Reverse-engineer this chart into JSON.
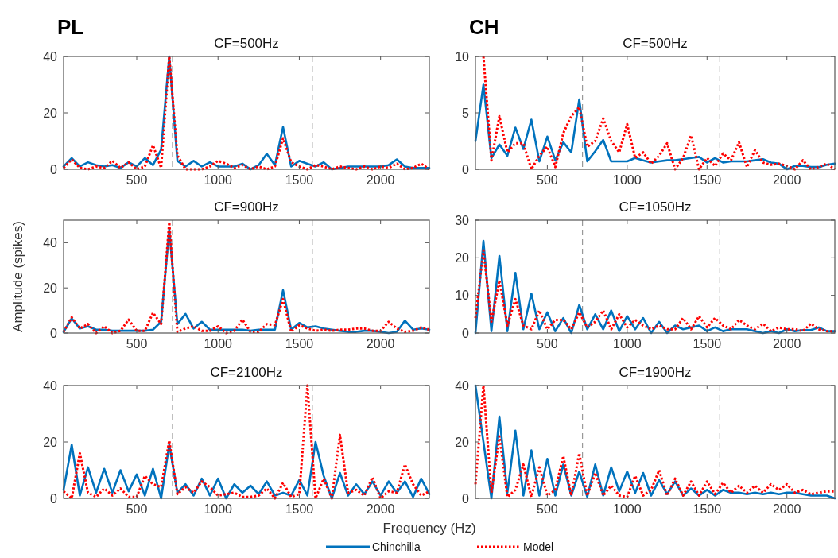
{
  "chart_data": [
    {
      "type": "line",
      "title": "CF=500Hz",
      "annotations": [
        "PL"
      ],
      "x": [
        50,
        100,
        150,
        200,
        250,
        300,
        350,
        400,
        450,
        500,
        550,
        600,
        650,
        700,
        750,
        800,
        850,
        900,
        950,
        1000,
        1050,
        1100,
        1150,
        1200,
        1250,
        1300,
        1350,
        1400,
        1450,
        1500,
        1550,
        1600,
        1650,
        1700,
        1750,
        1800,
        1850,
        1900,
        1950,
        2000,
        2050,
        2100,
        2150,
        2200,
        2250,
        2300
      ],
      "xlim": [
        50,
        2300
      ],
      "xticks": [
        500,
        1000,
        1500,
        2000
      ],
      "ylim": [
        0,
        40
      ],
      "yticks": [
        0,
        20,
        40
      ],
      "legend": false,
      "ref_lines": [
        {
          "axis": "x",
          "value": 720,
          "color": "#999999",
          "line_style": "dashed"
        },
        {
          "axis": "x",
          "value": 1580,
          "color": "#999999",
          "line_style": "dashed"
        }
      ],
      "series": [
        {
          "color": "#0072bd",
          "line_style": "solid",
          "values": [
            1,
            4,
            1,
            2.5,
            1.5,
            1,
            1.5,
            0.5,
            2.5,
            1,
            4,
            1.5,
            7,
            40,
            3,
            1,
            3,
            1,
            2.5,
            1,
            1,
            1,
            2,
            0,
            1.5,
            5.5,
            1.5,
            15,
            1,
            3,
            2,
            1,
            2.5,
            0,
            0.5,
            1,
            1,
            1,
            1,
            1,
            1.5,
            3.5,
            1,
            0.5,
            0.5,
            0.5
          ]
        },
        {
          "color": "#ff0000",
          "line_style": "dotted",
          "values": [
            0.5,
            3.5,
            0.5,
            0,
            1,
            0.5,
            3,
            0.5,
            2.5,
            0,
            1,
            8.5,
            0.5,
            40,
            5,
            0,
            0,
            0,
            1,
            3,
            2,
            0.5,
            1.5,
            0,
            1,
            0,
            1,
            11,
            2.5,
            1,
            0,
            1.5,
            1,
            0,
            1,
            0.5,
            0,
            1,
            0,
            1,
            0.5,
            2,
            0,
            0.5,
            2,
            0
          ]
        }
      ]
    },
    {
      "type": "line",
      "title": "CF=500Hz",
      "annotations": [
        "CH"
      ],
      "x": [
        50,
        100,
        150,
        200,
        250,
        300,
        350,
        400,
        450,
        500,
        550,
        600,
        650,
        700,
        750,
        800,
        850,
        900,
        950,
        1000,
        1050,
        1100,
        1150,
        1200,
        1250,
        1300,
        1350,
        1400,
        1450,
        1500,
        1550,
        1600,
        1650,
        1700,
        1750,
        1800,
        1850,
        1900,
        1950,
        2000,
        2050,
        2100,
        2150,
        2200,
        2250,
        2300
      ],
      "xlim": [
        50,
        2300
      ],
      "xticks": [
        500,
        1000,
        1500,
        2000
      ],
      "ylim": [
        0,
        10
      ],
      "yticks": [
        0,
        5,
        10
      ],
      "legend": false,
      "ref_lines": [
        {
          "axis": "x",
          "value": 720,
          "color": "#999999",
          "line_style": "dashed"
        },
        {
          "axis": "x",
          "value": 1580,
          "color": "#999999",
          "line_style": "dashed"
        }
      ],
      "series": [
        {
          "color": "#0072bd",
          "line_style": "solid",
          "values": [
            2.5,
            7.5,
            1,
            2.2,
            1.2,
            3.7,
            1.8,
            4.4,
            0.7,
            2.9,
            0.8,
            2.4,
            1.5,
            6.2,
            0.7,
            1.6,
            2.6,
            0.7,
            0.7,
            0.7,
            1,
            0.8,
            0.6,
            0.7,
            0.8,
            0.8,
            0.9,
            1,
            1.1,
            0.6,
            1,
            0.6,
            0.7,
            0.7,
            0.7,
            0.8,
            0.9,
            0.6,
            0.5,
            0,
            0.3,
            0.3,
            0.2,
            0.2,
            0.4,
            0.5
          ]
        },
        {
          "color": "#ff0000",
          "line_style": "dotted",
          "values": [
            null,
            10,
            0.8,
            4.7,
            1.5,
            2.3,
            2.3,
            0,
            1.2,
            2,
            0.2,
            3.2,
            4.7,
            5.5,
            2,
            2.5,
            4.5,
            2.5,
            1.5,
            4,
            1,
            1.5,
            0.5,
            1.2,
            2.3,
            0,
            1,
            3,
            0,
            1,
            0.3,
            1.4,
            0.8,
            2.4,
            0.2,
            1.7,
            0.6,
            0.4,
            0.5,
            0.3,
            0,
            0.8,
            0,
            0.2,
            0.5,
            0
          ]
        }
      ]
    },
    {
      "type": "line",
      "title": "CF=900Hz",
      "ylabel": "Amplitude (spikes)",
      "x": [
        50,
        100,
        150,
        200,
        250,
        300,
        350,
        400,
        450,
        500,
        550,
        600,
        650,
        700,
        750,
        800,
        850,
        900,
        950,
        1000,
        1050,
        1100,
        1150,
        1200,
        1250,
        1300,
        1350,
        1400,
        1450,
        1500,
        1550,
        1600,
        1650,
        1700,
        1750,
        1800,
        1850,
        1900,
        1950,
        2000,
        2050,
        2100,
        2150,
        2200,
        2250,
        2300
      ],
      "xlim": [
        50,
        2300
      ],
      "xticks": [
        500,
        1000,
        1500,
        2000
      ],
      "ylim": [
        0,
        50
      ],
      "yticks": [
        0,
        20,
        40
      ],
      "legend": false,
      "ref_lines": [
        {
          "axis": "x",
          "value": 720,
          "color": "#999999",
          "line_style": "dashed"
        },
        {
          "axis": "x",
          "value": 1580,
          "color": "#999999",
          "line_style": "dashed"
        }
      ],
      "series": [
        {
          "color": "#0072bd",
          "line_style": "solid",
          "values": [
            0.5,
            6.5,
            2,
            3,
            1.5,
            1.5,
            1,
            1,
            1,
            1,
            1,
            1.5,
            5,
            46,
            4,
            8.5,
            2,
            5,
            1.5,
            1.5,
            1.5,
            1.5,
            1.5,
            1,
            1.5,
            1.5,
            1.5,
            19,
            1.5,
            4.5,
            2.5,
            3,
            2,
            1.5,
            1,
            0.5,
            0.5,
            1,
            1,
            0.5,
            0,
            0.5,
            5.5,
            1.5,
            2,
            1.5
          ]
        },
        {
          "color": "#ff0000",
          "line_style": "dotted",
          "values": [
            0.5,
            7,
            2,
            4,
            0,
            3,
            0,
            1,
            6,
            1,
            1,
            9,
            4,
            49,
            0.5,
            2,
            3,
            1,
            1,
            3,
            0,
            1,
            6,
            0.5,
            0.5,
            4,
            3.5,
            15,
            0.5,
            3.5,
            2,
            1,
            1.5,
            1,
            1.5,
            1.5,
            2,
            2,
            1,
            1,
            5,
            2,
            0.5,
            1,
            2.5,
            1.5
          ]
        }
      ]
    },
    {
      "type": "line",
      "title": "CF=1050Hz",
      "x": [
        50,
        100,
        150,
        200,
        250,
        300,
        350,
        400,
        450,
        500,
        550,
        600,
        650,
        700,
        750,
        800,
        850,
        900,
        950,
        1000,
        1050,
        1100,
        1150,
        1200,
        1250,
        1300,
        1350,
        1400,
        1450,
        1500,
        1550,
        1600,
        1650,
        1700,
        1750,
        1800,
        1850,
        1900,
        1950,
        2000,
        2050,
        2100,
        2150,
        2200,
        2250,
        2300
      ],
      "xlim": [
        50,
        2300
      ],
      "xticks": [
        500,
        1000,
        1500,
        2000
      ],
      "ylim": [
        0,
        30
      ],
      "yticks": [
        0,
        10,
        20,
        30
      ],
      "legend": false,
      "ref_lines": [
        {
          "axis": "x",
          "value": 720,
          "color": "#999999",
          "line_style": "dashed"
        },
        {
          "axis": "x",
          "value": 1580,
          "color": "#999999",
          "line_style": "dashed"
        }
      ],
      "series": [
        {
          "color": "#0072bd",
          "line_style": "solid",
          "values": [
            0,
            24.5,
            0.5,
            20.5,
            0.5,
            16,
            1,
            10.5,
            1,
            5.5,
            0.5,
            4,
            0,
            7.5,
            1,
            5,
            1,
            6,
            0.5,
            4.5,
            1,
            4,
            0,
            3,
            0,
            2,
            1,
            1.5,
            2,
            0.5,
            1.5,
            0.5,
            1,
            1,
            1,
            0.5,
            0,
            0.5,
            0,
            1,
            0.5,
            0.8,
            0.8,
            1.5,
            0.5,
            0.5
          ]
        },
        {
          "color": "#ff0000",
          "line_style": "dotted",
          "values": [
            4,
            22,
            3,
            14,
            2,
            9,
            2,
            1,
            6,
            1,
            3.5,
            3.5,
            1,
            5.5,
            1.5,
            3,
            6,
            1,
            5,
            1.5,
            3.5,
            2,
            1,
            2,
            1,
            1,
            4,
            1,
            4.5,
            1.5,
            4,
            2,
            1,
            3.5,
            2,
            1,
            2.5,
            0.5,
            1.5,
            1,
            1,
            0.5,
            2.5,
            1,
            0.5,
            0.5
          ]
        }
      ]
    },
    {
      "type": "line",
      "title": "CF=2100Hz",
      "xlabel": "Frequency (Hz)",
      "x": [
        50,
        100,
        150,
        200,
        250,
        300,
        350,
        400,
        450,
        500,
        550,
        600,
        650,
        700,
        750,
        800,
        850,
        900,
        950,
        1000,
        1050,
        1100,
        1150,
        1200,
        1250,
        1300,
        1350,
        1400,
        1450,
        1500,
        1550,
        1600,
        1650,
        1700,
        1750,
        1800,
        1850,
        1900,
        1950,
        2000,
        2050,
        2100,
        2150,
        2200,
        2250,
        2300
      ],
      "xlim": [
        50,
        2300
      ],
      "xticks": [
        500,
        1000,
        1500,
        2000
      ],
      "ylim": [
        0,
        40
      ],
      "yticks": [
        0,
        20,
        40
      ],
      "legend": "bottom",
      "ref_lines": [
        {
          "axis": "x",
          "value": 720,
          "color": "#999999",
          "line_style": "dashed"
        },
        {
          "axis": "x",
          "value": 1580,
          "color": "#999999",
          "line_style": "dashed"
        }
      ],
      "series": [
        {
          "name": "Chinchilla",
          "color": "#0072bd",
          "line_style": "solid",
          "values": [
            3,
            19,
            1,
            11,
            2,
            10.5,
            2,
            10,
            2.5,
            8.5,
            1,
            10.5,
            0,
            19,
            2,
            5,
            1,
            7,
            1,
            7,
            0,
            5,
            2,
            4.5,
            1.5,
            6,
            1,
            2,
            1,
            6.5,
            1,
            20,
            8,
            0,
            9,
            1,
            5,
            1.5,
            6,
            1,
            6,
            2,
            6,
            0.5,
            7,
            1.5
          ]
        },
        {
          "name": "Model",
          "color": "#ff0000",
          "line_style": "dotted",
          "values": [
            2.5,
            0,
            16,
            2,
            0.5,
            3.5,
            1,
            3.5,
            0.5,
            0.5,
            8,
            5,
            4,
            20.5,
            1.5,
            4,
            2,
            6,
            4,
            1,
            1.5,
            2,
            0.5,
            0.5,
            1,
            3.5,
            0,
            5.5,
            0.5,
            1.5,
            40,
            0,
            7,
            0,
            22.5,
            2,
            3,
            1,
            7.5,
            0,
            2.5,
            2,
            12,
            5,
            1,
            2.5
          ]
        }
      ]
    },
    {
      "type": "line",
      "title": "CF=1900Hz",
      "x": [
        50,
        100,
        150,
        200,
        250,
        300,
        350,
        400,
        450,
        500,
        550,
        600,
        650,
        700,
        750,
        800,
        850,
        900,
        950,
        1000,
        1050,
        1100,
        1150,
        1200,
        1250,
        1300,
        1350,
        1400,
        1450,
        1500,
        1550,
        1600,
        1650,
        1700,
        1750,
        1800,
        1850,
        1900,
        1950,
        2000,
        2050,
        2100,
        2150,
        2200,
        2250,
        2300
      ],
      "xlim": [
        50,
        2300
      ],
      "xticks": [
        500,
        1000,
        1500,
        2000
      ],
      "ylim": [
        0,
        40
      ],
      "yticks": [
        0,
        20,
        40
      ],
      "legend": false,
      "ref_lines": [
        {
          "axis": "x",
          "value": 720,
          "color": "#999999",
          "line_style": "dashed"
        },
        {
          "axis": "x",
          "value": 1580,
          "color": "#999999",
          "line_style": "dashed"
        }
      ],
      "series": [
        {
          "color": "#0072bd",
          "line_style": "solid",
          "values": [
            40,
            20,
            0,
            29,
            2,
            24,
            1,
            17,
            1,
            14,
            1,
            12,
            1,
            9.5,
            0.5,
            12,
            1,
            11,
            2.5,
            9.5,
            2,
            9,
            1,
            6.5,
            1.5,
            6,
            1,
            3.5,
            1,
            3,
            1,
            3,
            2,
            2,
            1.5,
            2,
            1.5,
            2,
            1.5,
            2,
            2,
            1.5,
            1,
            1,
            1,
            0
          ]
        },
        {
          "color": "#ff0000",
          "line_style": "dotted",
          "values": [
            5,
            40,
            2,
            22,
            0.5,
            3,
            12,
            0.5,
            11,
            1,
            3,
            15,
            1,
            16,
            1,
            9,
            1,
            4.5,
            1,
            0.5,
            8,
            1,
            3,
            10,
            1,
            7,
            1,
            6,
            1,
            6,
            1.5,
            5.5,
            2,
            4.5,
            2,
            4.5,
            2,
            5,
            3,
            5,
            2,
            3,
            1.5,
            2,
            2.5,
            2.5
          ]
        }
      ]
    }
  ]
}
